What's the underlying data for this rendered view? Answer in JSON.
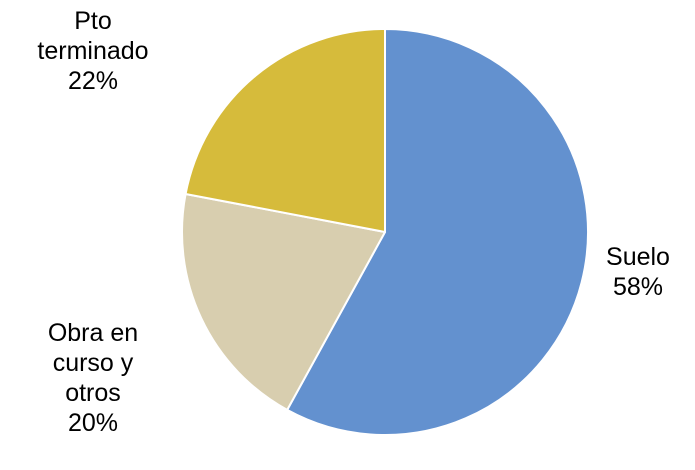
{
  "chart_data": {
    "type": "pie",
    "title": "",
    "start": "12 o'clock",
    "direction": "clockwise",
    "slice_border_color": "#ffffff",
    "slices": [
      {
        "name": "Suelo",
        "value": 58,
        "percent_label": "58%",
        "color": "#6391cf",
        "label_lines": [
          "Suelo",
          "58%"
        ]
      },
      {
        "name": "Obra en curso y otros",
        "value": 20,
        "percent_label": "20%",
        "color": "#d8ceaf",
        "label_lines": [
          "Obra en",
          "curso y",
          "otros",
          "20%"
        ]
      },
      {
        "name": "Pto terminado",
        "value": 22,
        "percent_label": "22%",
        "color": "#d6bb3b",
        "label_lines": [
          "Pto",
          "terminado",
          "22%"
        ]
      }
    ]
  }
}
